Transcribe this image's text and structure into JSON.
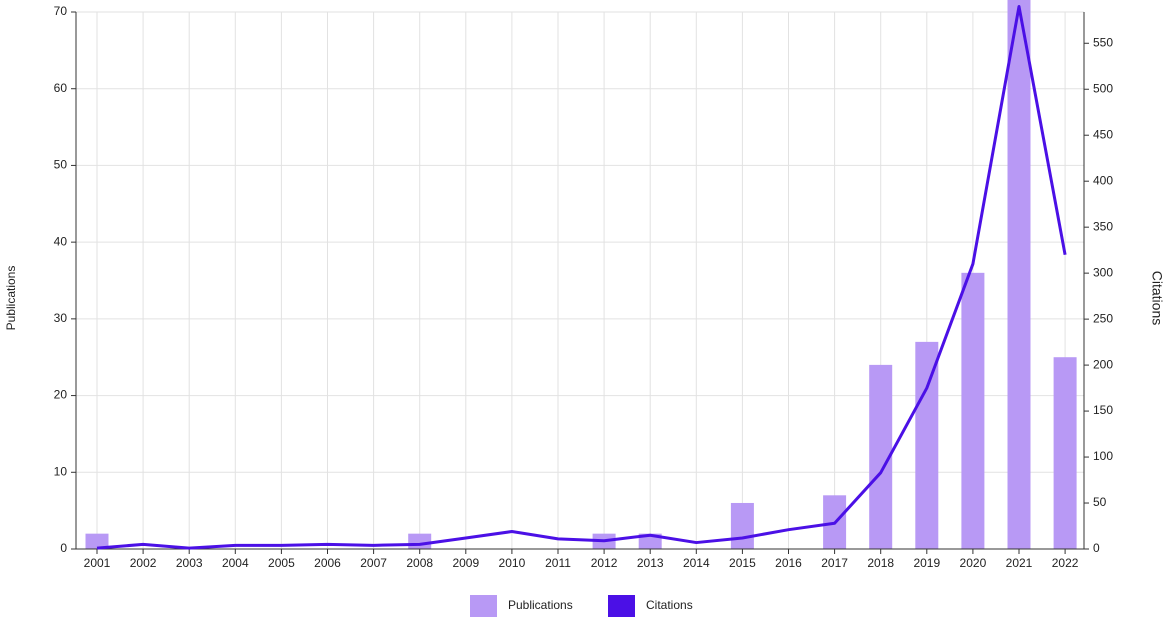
{
  "chart_data": {
    "type": "bar-line",
    "categories": [
      "2001",
      "2002",
      "2003",
      "2004",
      "2005",
      "2006",
      "2007",
      "2008",
      "2009",
      "2010",
      "2011",
      "2012",
      "2013",
      "2014",
      "2015",
      "2016",
      "2017",
      "2018",
      "2019",
      "2020",
      "2021",
      "2022"
    ],
    "ylabel": "Publications",
    "y2label": "Citations",
    "ylim": [
      0,
      70
    ],
    "yticks": [
      0,
      10,
      20,
      30,
      40,
      50,
      60,
      70
    ],
    "y2lim": [
      0,
      584
    ],
    "y2ticks": [
      0,
      50,
      100,
      150,
      200,
      250,
      300,
      350,
      400,
      450,
      500,
      550
    ],
    "grid": true,
    "legend": "bottom",
    "series": [
      {
        "name": "Publications",
        "type": "bar",
        "color": "#b899f5",
        "values": [
          2,
          0,
          0,
          0,
          0,
          0,
          0,
          2,
          0,
          0,
          0,
          2,
          2,
          0,
          6,
          0,
          7,
          24,
          27,
          36,
          72,
          25
        ]
      },
      {
        "name": "Citations",
        "type": "line",
        "axis": "y2",
        "color": "#4b10e6",
        "values": [
          1,
          5,
          1,
          4,
          4,
          5,
          4,
          5,
          12,
          19,
          11,
          9,
          15,
          7,
          12,
          21,
          28,
          83,
          175,
          310,
          590,
          320
        ]
      }
    ]
  }
}
